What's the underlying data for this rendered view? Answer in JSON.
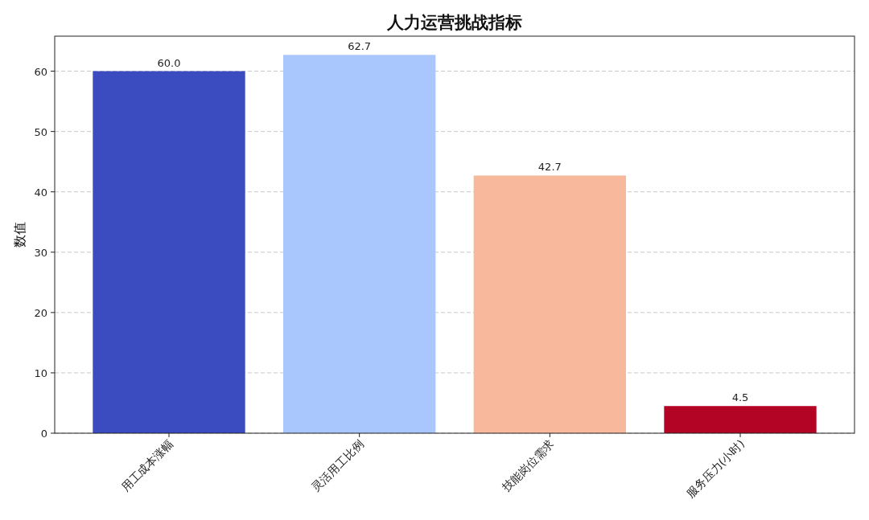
{
  "chart_data": {
    "type": "bar",
    "title": "人力运营挑战指标",
    "ylabel": "数值",
    "categories": [
      "用工成本涨幅",
      "灵活用工比例",
      "技能岗位需求",
      "服务压力(小时)"
    ],
    "values": [
      60.0,
      62.7,
      42.7,
      4.5
    ],
    "value_labels": [
      "60.0",
      "62.7",
      "42.7",
      "4.5"
    ],
    "colors": [
      "#3b4cc0",
      "#aac7fd",
      "#f7b89c",
      "#b40426"
    ],
    "ylim": [
      0,
      65.8
    ],
    "yticks": [
      0,
      10,
      20,
      30,
      40,
      50,
      60
    ],
    "grid": "y"
  }
}
